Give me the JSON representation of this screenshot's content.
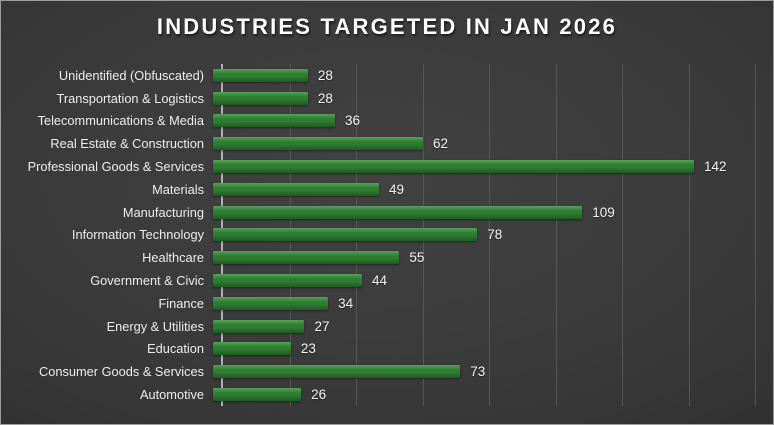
{
  "title": "INDUSTRIES TARGETED IN JAN 2026",
  "colors": {
    "background_center": "#424242",
    "background_edge": "#262626",
    "border": "#9d9d9d",
    "title_text": "#ffffff",
    "label_text": "#ececec",
    "value_text": "#f2f2f2",
    "grid_line": "#5f5f5f",
    "axis_line": "#c4c4c4",
    "bar_top": "#55a257",
    "bar_mid": "#2e7d32",
    "bar_bottom": "#1d5a21"
  },
  "chart_data": {
    "type": "bar",
    "orientation": "horizontal",
    "title": "INDUSTRIES TARGETED IN JAN 2026",
    "categories": [
      "Unidentified (Obfuscated)",
      "Transportation & Logistics",
      "Telecommunications & Media",
      "Real Estate & Construction",
      "Professional Goods & Services",
      "Materials",
      "Manufacturing",
      "Information Technology",
      "Healthcare",
      "Government & Civic",
      "Finance",
      "Energy & Utilities",
      "Education",
      "Consumer Goods & Services",
      "Automotive"
    ],
    "values": [
      28,
      28,
      36,
      62,
      142,
      49,
      109,
      78,
      55,
      44,
      34,
      27,
      23,
      73,
      26
    ],
    "xlabel": "",
    "ylabel": "",
    "xlim": [
      0,
      160
    ],
    "gridline_interval": 20,
    "grid": true,
    "legend_position": "none",
    "data_labels": true
  }
}
